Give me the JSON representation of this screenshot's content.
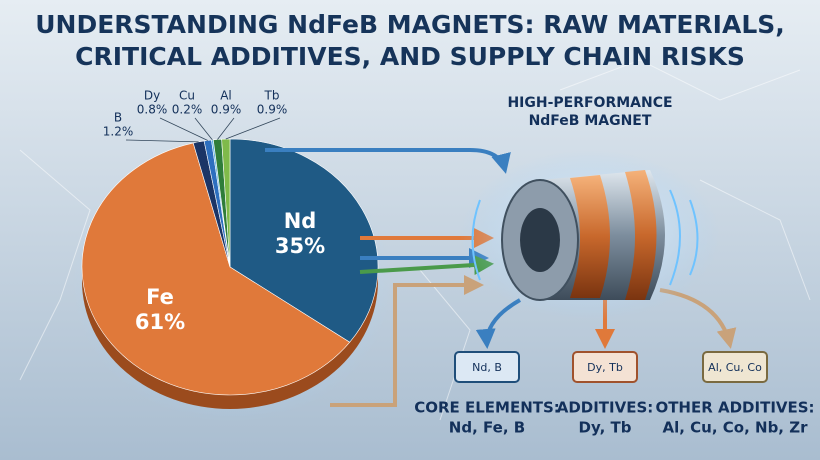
{
  "chart_data": {
    "type": "pie",
    "title": [
      "UNDERSTANDING NdFeB MAGNETS: RAW MATERIALS,",
      "CRITICAL ADDITIVES, AND SUPPLY CHAIN RISKS"
    ],
    "categories": [
      "Nd",
      "Fe",
      "B",
      "Dy",
      "Cu",
      "Al",
      "Tb"
    ],
    "values": [
      35,
      61,
      1.2,
      0.8,
      0.2,
      0.9,
      0.9
    ],
    "value_labels": [
      "35%",
      "61%",
      "1.2%",
      "0.8%",
      "0.2%",
      "0.9%",
      "0.9%"
    ],
    "colors": [
      "#1f5a85",
      "#e0793a",
      "#1b3566",
      "#2d6fbf",
      "#5bb2e0",
      "#2f7d3a",
      "#7fba4a"
    ]
  },
  "diagram": {
    "magnet_label": [
      "HIGH-PERFORMANCE",
      "NdFeB MAGNET"
    ],
    "groups": [
      {
        "bin": "Nd, B",
        "heading": "CORE ELEMENTS:",
        "items": "Nd, Fe, B"
      },
      {
        "bin": "Dy, Tb",
        "heading": "ADDITIVES:",
        "items": "Dy, Tb"
      },
      {
        "bin": "Al, Cu, Co",
        "heading": "OTHER ADDITIVES:",
        "items": "Al, Cu, Co, Nb, Zr"
      }
    ]
  }
}
